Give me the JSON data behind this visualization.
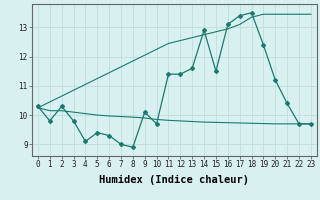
{
  "xlabel": "Humidex (Indice chaleur)",
  "ylabel": "",
  "x": [
    0,
    1,
    2,
    3,
    4,
    5,
    6,
    7,
    8,
    9,
    10,
    11,
    12,
    13,
    14,
    15,
    16,
    17,
    18,
    19,
    20,
    21,
    22,
    23
  ],
  "line_zigzag": [
    10.3,
    9.8,
    10.3,
    9.8,
    9.1,
    9.4,
    9.3,
    9.0,
    8.9,
    10.1,
    9.7,
    11.4,
    11.4,
    11.6,
    12.9,
    11.5,
    13.1,
    13.4,
    13.5,
    12.4,
    11.2,
    10.4,
    9.7,
    9.7
  ],
  "line_upper": [
    10.25,
    10.45,
    10.65,
    10.85,
    11.05,
    11.25,
    11.45,
    11.65,
    11.85,
    12.05,
    12.25,
    12.45,
    12.55,
    12.65,
    12.75,
    12.85,
    12.95,
    13.1,
    13.35,
    13.45,
    13.45,
    13.45,
    13.45,
    13.45
  ],
  "line_lower": [
    10.25,
    10.15,
    10.15,
    10.1,
    10.05,
    10.0,
    9.97,
    9.95,
    9.93,
    9.9,
    9.85,
    9.82,
    9.8,
    9.78,
    9.76,
    9.75,
    9.74,
    9.73,
    9.72,
    9.71,
    9.7,
    9.7,
    9.7,
    9.7
  ],
  "line_color": "#1a7a6e",
  "bg_color": "#d8f0f0",
  "grid_color": "#c0dede",
  "ylim": [
    8.6,
    13.8
  ],
  "xlim": [
    -0.5,
    23.5
  ],
  "yticks": [
    9,
    10,
    11,
    12,
    13
  ],
  "xticks": [
    0,
    1,
    2,
    3,
    4,
    5,
    6,
    7,
    8,
    9,
    10,
    11,
    12,
    13,
    14,
    15,
    16,
    17,
    18,
    19,
    20,
    21,
    22,
    23
  ],
  "tick_fontsize": 5.5,
  "xlabel_fontsize": 7.5
}
